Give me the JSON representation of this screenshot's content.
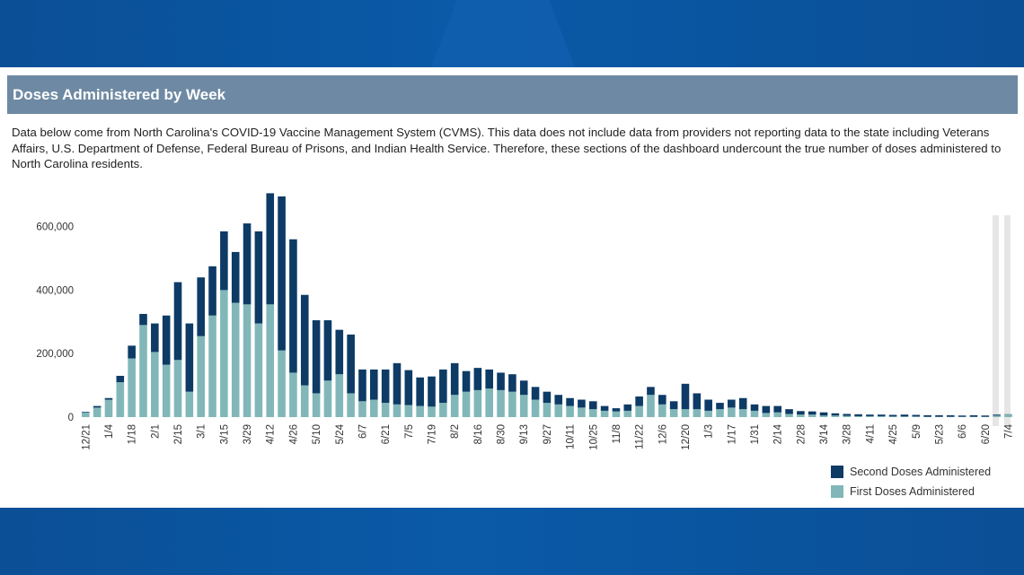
{
  "header": {
    "title": "Doses Administered by Week"
  },
  "description": "Data below come from North Carolina's COVID-19 Vaccine Management System (CVMS). This data does not include data from providers not reporting data to the state including Veterans Affairs, U.S. Department of Defense, Federal Bureau of Prisons, and Indian Health Service. Therefore, these sections of the dashboard undercount the true number of doses administered to North Carolina residents.",
  "colors": {
    "first": "#82b7b9",
    "second": "#0d3b66",
    "header_bg": "#6e89a3",
    "band": "#0b4f96"
  },
  "chart_data": {
    "type": "bar",
    "stacked": true,
    "ylim": [
      0,
      710000
    ],
    "yticks": [
      0,
      200000,
      400000,
      600000
    ],
    "ytick_labels": [
      "0",
      "200,000",
      "400,000",
      "600,000"
    ],
    "grid": false,
    "legend_position": "bottom-right",
    "tick_labels": [
      "12/21",
      "1/4",
      "1/18",
      "2/1",
      "2/15",
      "3/1",
      "3/15",
      "3/29",
      "4/12",
      "4/26",
      "5/10",
      "5/24",
      "6/7",
      "6/21",
      "7/5",
      "7/19",
      "8/2",
      "8/16",
      "8/30",
      "9/13",
      "9/27",
      "10/11",
      "10/25",
      "11/8",
      "11/22",
      "12/6",
      "12/20",
      "1/3",
      "1/17",
      "1/31",
      "2/14",
      "2/28",
      "3/14",
      "3/28",
      "4/11",
      "4/25",
      "5/9",
      "5/23",
      "6/6",
      "6/20",
      "7/4"
    ],
    "series": [
      {
        "name": "First Doses Administered",
        "values": [
          15000,
          30000,
          55000,
          110000,
          185000,
          290000,
          205000,
          165000,
          180000,
          80000,
          255000,
          320000,
          400000,
          360000,
          355000,
          295000,
          355000,
          210000,
          140000,
          100000,
          75000,
          115000,
          135000,
          75000,
          50000,
          55000,
          45000,
          40000,
          38000,
          35000,
          33000,
          45000,
          70000,
          80000,
          85000,
          90000,
          85000,
          80000,
          70000,
          55000,
          45000,
          40000,
          35000,
          30000,
          25000,
          20000,
          18000,
          20000,
          35000,
          70000,
          40000,
          25000,
          25000,
          25000,
          20000,
          25000,
          30000,
          25000,
          20000,
          13000,
          15000,
          10000,
          8000,
          8000,
          5000,
          5000,
          4000,
          3000,
          3000,
          3000,
          2000,
          2000,
          2000,
          1000,
          1000,
          1000,
          1000,
          1000,
          1000,
          5000,
          8000
        ],
        "color": "#82b7b9"
      },
      {
        "name": "Second Doses Administered",
        "values": [
          2000,
          5000,
          5000,
          20000,
          40000,
          35000,
          90000,
          155000,
          245000,
          215000,
          185000,
          155000,
          185000,
          160000,
          255000,
          290000,
          350000,
          485000,
          420000,
          285000,
          230000,
          190000,
          140000,
          185000,
          100000,
          95000,
          105000,
          130000,
          110000,
          90000,
          95000,
          105000,
          100000,
          65000,
          70000,
          60000,
          55000,
          55000,
          45000,
          40000,
          35000,
          30000,
          25000,
          25000,
          25000,
          15000,
          10000,
          20000,
          30000,
          25000,
          30000,
          25000,
          80000,
          50000,
          35000,
          20000,
          25000,
          35000,
          20000,
          22000,
          20000,
          15000,
          11000,
          10000,
          10000,
          7000,
          6000,
          6000,
          5000,
          5000,
          5000,
          6000,
          5000,
          5000,
          5000,
          5000,
          4000,
          5000,
          4000,
          3000,
          1000
        ],
        "color": "#0d3b66"
      }
    ]
  },
  "legend": [
    {
      "label": "Second Doses Administered",
      "color": "#0d3b66"
    },
    {
      "label": "First Doses Administered",
      "color": "#82b7b9"
    }
  ]
}
